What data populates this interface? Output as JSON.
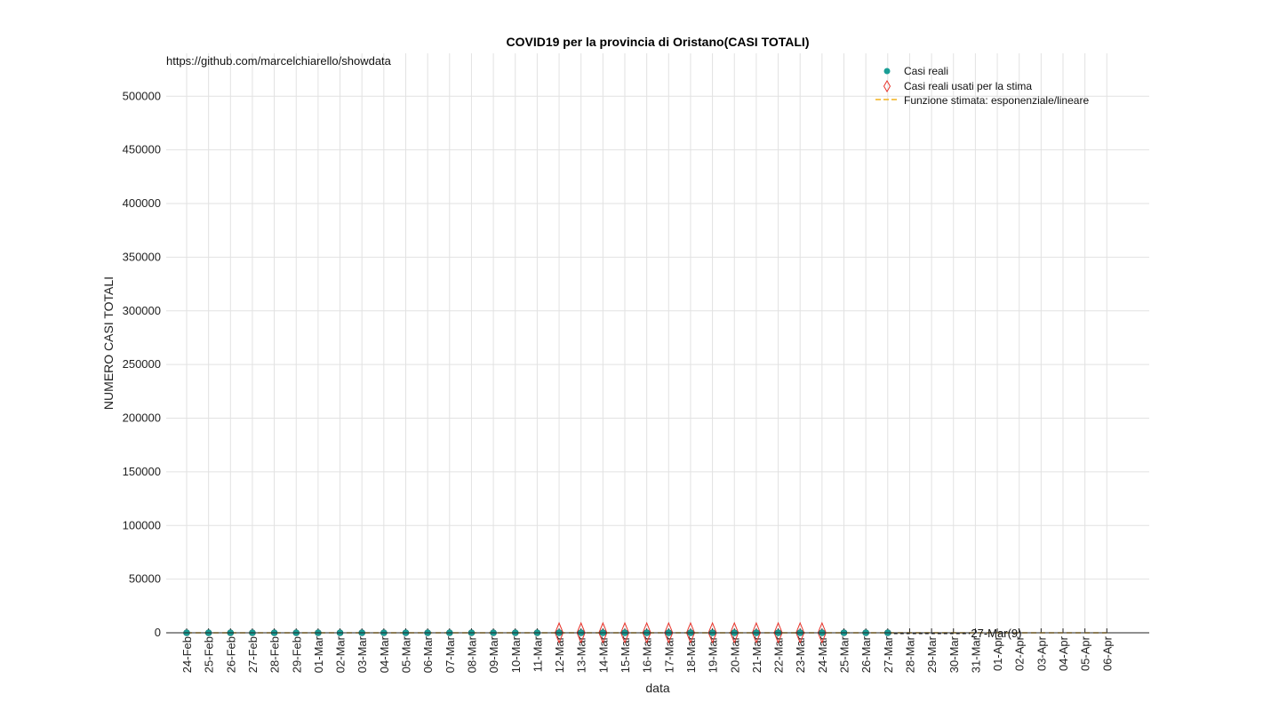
{
  "chart_data": {
    "type": "scatter",
    "title": "COVID19 per la provincia di Oristano(CASI TOTALI)",
    "xlabel": "data",
    "ylabel": "NUMERO CASI TOTALI",
    "ylim": [
      0,
      540000
    ],
    "yticks": [
      0,
      50000,
      100000,
      150000,
      200000,
      250000,
      300000,
      350000,
      400000,
      450000,
      500000
    ],
    "grid": true,
    "legend_position": "top-right",
    "categories": [
      "24-Feb",
      "25-Feb",
      "26-Feb",
      "27-Feb",
      "28-Feb",
      "29-Feb",
      "01-Mar",
      "02-Mar",
      "03-Mar",
      "04-Mar",
      "05-Mar",
      "06-Mar",
      "07-Mar",
      "08-Mar",
      "09-Mar",
      "10-Mar",
      "11-Mar",
      "12-Mar",
      "13-Mar",
      "14-Mar",
      "15-Mar",
      "16-Mar",
      "17-Mar",
      "18-Mar",
      "19-Mar",
      "20-Mar",
      "21-Mar",
      "22-Mar",
      "23-Mar",
      "24-Mar",
      "25-Mar",
      "26-Mar",
      "27-Mar",
      "28-Mar",
      "29-Mar",
      "30-Mar",
      "31-Mar",
      "01-Apr",
      "02-Apr",
      "03-Apr",
      "04-Apr",
      "05-Apr",
      "06-Apr"
    ],
    "series": [
      {
        "name": "Casi reali",
        "color": "#1a9e96",
        "marker": "circle",
        "values": [
          0,
          0,
          0,
          0,
          0,
          0,
          0,
          0,
          0,
          0,
          0,
          0,
          0,
          0,
          0,
          0,
          0,
          1,
          1,
          1,
          2,
          2,
          2,
          2,
          3,
          3,
          4,
          4,
          5,
          5,
          6,
          8,
          9
        ]
      },
      {
        "name": "Casi reali usati per la stima",
        "color": "#e8332a",
        "marker": "diamond",
        "start_index": 17,
        "values": [
          1,
          1,
          1,
          2,
          2,
          2,
          2,
          3,
          3,
          4,
          4,
          5,
          5
        ]
      },
      {
        "name": "Funzione stimata: esponenziale/lineare",
        "color": "#f2b21b",
        "style": "dashed",
        "values": [
          0,
          0,
          0,
          0,
          0,
          0,
          0,
          0,
          0,
          0,
          0,
          0,
          0,
          0,
          0,
          0,
          0,
          1,
          1,
          1,
          2,
          2,
          2,
          2,
          3,
          3,
          4,
          4,
          5,
          5,
          6,
          7,
          8,
          9,
          10,
          11,
          12,
          13,
          14,
          15,
          16,
          17,
          18
        ]
      }
    ],
    "annotations": [
      {
        "text": "27-Mar(9)",
        "x": "27-Mar",
        "y": 9
      }
    ],
    "watermark": "https://github.com/marcelchiarello/showdata"
  }
}
